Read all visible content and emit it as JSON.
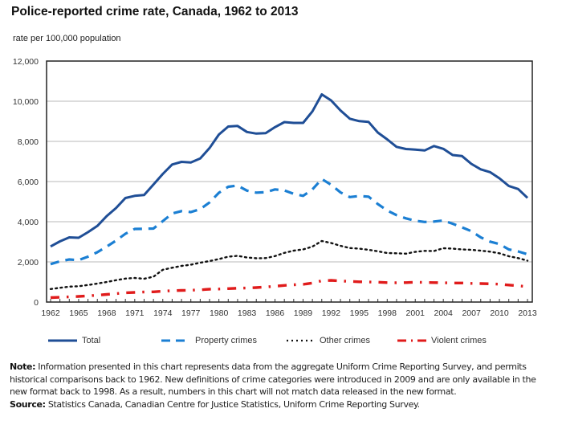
{
  "chart_data": {
    "type": "line",
    "title": "Police-reported crime rate, Canada, 1962 to 2013",
    "ylabel": "rate per 100,000 population",
    "xlabel": "",
    "ylim": [
      0,
      12000
    ],
    "xlim": [
      1962,
      2013
    ],
    "yticks": [
      0,
      2000,
      4000,
      6000,
      8000,
      10000,
      12000
    ],
    "ytick_labels": [
      "0",
      "2,000",
      "4,000",
      "6,000",
      "8,000",
      "10,000",
      "12,000"
    ],
    "xtick_labels": [
      "1962",
      "1965",
      "1968",
      "1971",
      "1974",
      "1977",
      "1980",
      "1983",
      "1986",
      "1989",
      "1992",
      "1995",
      "1998",
      "2001",
      "2004",
      "2007",
      "2010",
      "2013"
    ],
    "grid": true,
    "legend_position": "bottom",
    "x": [
      1962,
      1963,
      1964,
      1965,
      1966,
      1967,
      1968,
      1969,
      1970,
      1971,
      1972,
      1973,
      1974,
      1975,
      1976,
      1977,
      1978,
      1979,
      1980,
      1981,
      1982,
      1983,
      1984,
      1985,
      1986,
      1987,
      1988,
      1989,
      1990,
      1991,
      1992,
      1993,
      1994,
      1995,
      1996,
      1997,
      1998,
      1999,
      2000,
      2001,
      2002,
      2003,
      2004,
      2005,
      2006,
      2007,
      2008,
      2009,
      2010,
      2011,
      2012,
      2013
    ],
    "series": [
      {
        "name": "Total",
        "style": "solid",
        "color": "#1f4e96",
        "values": [
          2770,
          3020,
          3220,
          3200,
          3480,
          3790,
          4280,
          4680,
          5180,
          5290,
          5330,
          5850,
          6380,
          6850,
          6980,
          6950,
          7150,
          7670,
          8340,
          8740,
          8770,
          8470,
          8390,
          8410,
          8710,
          8960,
          8920,
          8920,
          9490,
          10340,
          10040,
          9540,
          9130,
          9010,
          8970,
          8440,
          8100,
          7730,
          7620,
          7590,
          7550,
          7770,
          7630,
          7320,
          7270,
          6880,
          6610,
          6470,
          6160,
          5780,
          5630,
          5190
        ]
      },
      {
        "name": "Property crimes",
        "style": "dashed",
        "color": "#1b7fd3",
        "values": [
          1890,
          2030,
          2120,
          2090,
          2260,
          2480,
          2760,
          3060,
          3400,
          3640,
          3650,
          3660,
          4030,
          4410,
          4530,
          4480,
          4630,
          4960,
          5440,
          5740,
          5800,
          5550,
          5450,
          5470,
          5610,
          5560,
          5390,
          5290,
          5610,
          6130,
          5840,
          5460,
          5230,
          5280,
          5250,
          4880,
          4560,
          4330,
          4170,
          4050,
          3990,
          4010,
          4060,
          3900,
          3720,
          3530,
          3220,
          3010,
          2890,
          2620,
          2520,
          2380
        ]
      },
      {
        "name": "Other crimes",
        "style": "dotted",
        "color": "#111111",
        "values": [
          650,
          710,
          770,
          790,
          850,
          920,
          1000,
          1090,
          1170,
          1200,
          1160,
          1260,
          1610,
          1710,
          1800,
          1860,
          1960,
          2040,
          2140,
          2260,
          2300,
          2220,
          2180,
          2190,
          2290,
          2450,
          2560,
          2620,
          2760,
          3040,
          2940,
          2800,
          2690,
          2660,
          2600,
          2530,
          2440,
          2430,
          2410,
          2500,
          2550,
          2540,
          2680,
          2660,
          2620,
          2600,
          2560,
          2510,
          2430,
          2280,
          2190,
          2060
        ]
      },
      {
        "name": "Violent crimes",
        "style": "dash-dot",
        "color": "#e01b1b",
        "values": [
          220,
          240,
          260,
          280,
          310,
          340,
          380,
          420,
          460,
          480,
          500,
          510,
          540,
          570,
          580,
          590,
          610,
          640,
          650,
          670,
          690,
          700,
          720,
          750,
          790,
          830,
          860,
          880,
          950,
          1060,
          1080,
          1050,
          1030,
          1010,
          1000,
          990,
          970,
          960,
          970,
          990,
          980,
          970,
          960,
          950,
          950,
          930,
          920,
          910,
          890,
          850,
          810,
          770
        ]
      }
    ]
  },
  "header": {
    "title": "Police-reported crime rate, Canada, 1962 to 2013",
    "yaxis_label": "rate per 100,000 population"
  },
  "legend": [
    {
      "label": "Total"
    },
    {
      "label": "Property crimes"
    },
    {
      "label": "Other crimes"
    },
    {
      "label": "Violent crimes"
    }
  ],
  "footnotes": {
    "note_label": "Note:",
    "note_text": " Information presented in this chart represents data from the aggregate Uniform Crime Reporting Survey, and permits historical comparisons back to 1962. New definitions of crime categories were introduced in 2009 and are only available in the new format back to 1998. As a result, numbers in this chart will not match data released in the new format.",
    "source_label": "Source:",
    "source_text": " Statistics Canada, Canadian Centre for Justice Statistics, Uniform Crime Reporting Survey."
  }
}
